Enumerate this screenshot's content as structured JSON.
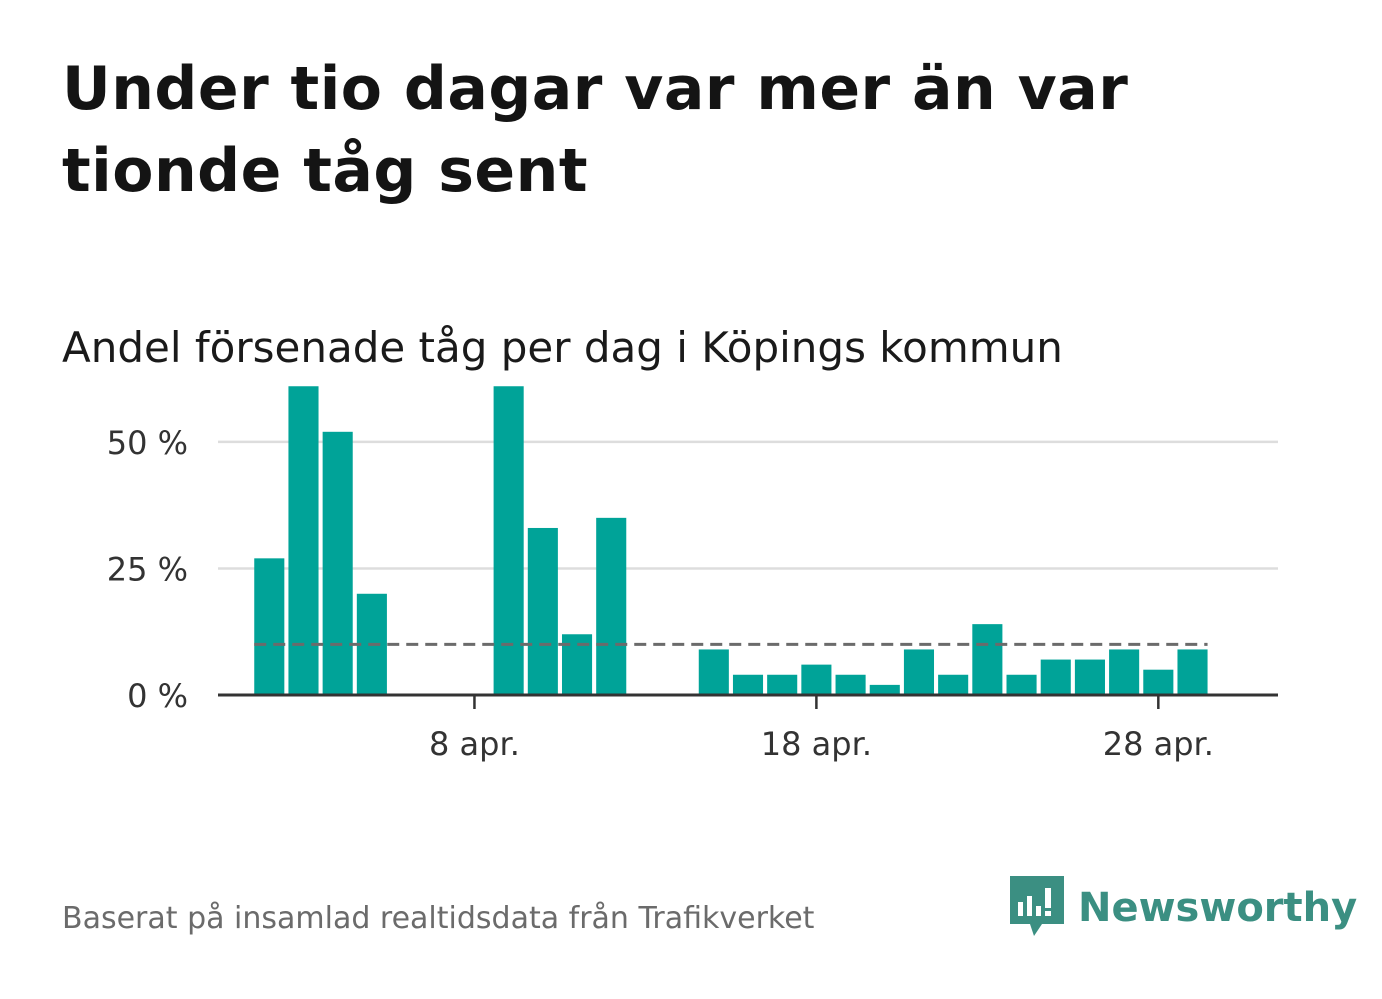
{
  "title": "Under tio dagar var mer än var tionde tåg sent",
  "subtitle": "Andel försenade tåg per dag i Köpings kommun",
  "footer": "Baserat på insamlad realtidsdata från Trafikverket",
  "brand": {
    "name": "Newsworthy",
    "icon": "newsworthy-logo-icon",
    "color": "#3b8f82"
  },
  "colors": {
    "bar": "#00a398",
    "grid": "#dddddd",
    "axis": "#333333",
    "reference": "#6b6b6b"
  },
  "chart_data": {
    "type": "bar",
    "title": "Andel försenade tåg per dag i Köpings kommun",
    "xlabel": "",
    "ylabel": "",
    "x_unit": "day of April",
    "x": [
      1,
      2,
      3,
      4,
      5,
      6,
      7,
      8,
      9,
      10,
      11,
      12,
      13,
      14,
      15,
      16,
      17,
      18,
      19,
      20,
      21,
      22,
      23,
      24,
      25,
      26,
      27,
      28,
      29,
      30
    ],
    "values": [
      null,
      27,
      61,
      52,
      20,
      null,
      null,
      null,
      61,
      33,
      12,
      35,
      null,
      null,
      9,
      4,
      4,
      6,
      4,
      2,
      9,
      4,
      14,
      4,
      7,
      7,
      9,
      5,
      9,
      null
    ],
    "reference_line": {
      "value": 10,
      "style": "dashed"
    },
    "x_ticks": [
      {
        "day": 8,
        "label": "8 apr."
      },
      {
        "day": 18,
        "label": "18 apr."
      },
      {
        "day": 28,
        "label": "28 apr."
      }
    ],
    "y_ticks": [
      {
        "value": 0,
        "label": "0 %"
      },
      {
        "value": 25,
        "label": "25 %"
      },
      {
        "value": 50,
        "label": "50 %"
      }
    ],
    "ylim": [
      0,
      65
    ],
    "xlim": [
      0.5,
      31.5
    ],
    "grid": true,
    "legend": "none"
  }
}
